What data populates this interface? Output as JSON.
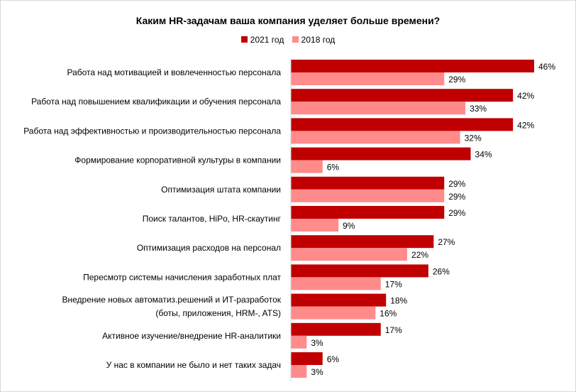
{
  "chart_data": {
    "type": "bar",
    "orientation": "horizontal",
    "title": "Каким HR-задачам ваша компания уделяет больше времени?",
    "legend_position": "top",
    "grid": false,
    "xlim": [
      0,
      46
    ],
    "categories": [
      [
        "Работа над мотивацией и вовлеченностью персонала"
      ],
      [
        "Работа над повышением квалификации и обучения персонала"
      ],
      [
        "Работа над эффективностью и производительностью персонала"
      ],
      [
        "Формирование корпоративной культуры в компании"
      ],
      [
        "Оптимизация штата компании"
      ],
      [
        "Поиск талантов, HiPo, HR-скаутинг"
      ],
      [
        "Оптимизация расходов на персонал"
      ],
      [
        "Пересмотр системы начисления заработных плат"
      ],
      [
        "Внедрение новых автоматиз.решений и ИТ-разработок",
        "(боты, приложения, HRM-, ATS)"
      ],
      [
        "Активное изучение/внедрение HR-аналитики"
      ],
      [
        "У нас в компании не было и нет таких задач"
      ]
    ],
    "series": [
      {
        "name": "2021 год",
        "color": "#C00000",
        "values": [
          46,
          42,
          42,
          34,
          29,
          29,
          27,
          26,
          18,
          17,
          6
        ]
      },
      {
        "name": "2018 год",
        "color": "#FF8B8B",
        "values": [
          29,
          33,
          32,
          6,
          29,
          9,
          22,
          17,
          16,
          3,
          3
        ]
      }
    ],
    "value_suffix": "%"
  }
}
